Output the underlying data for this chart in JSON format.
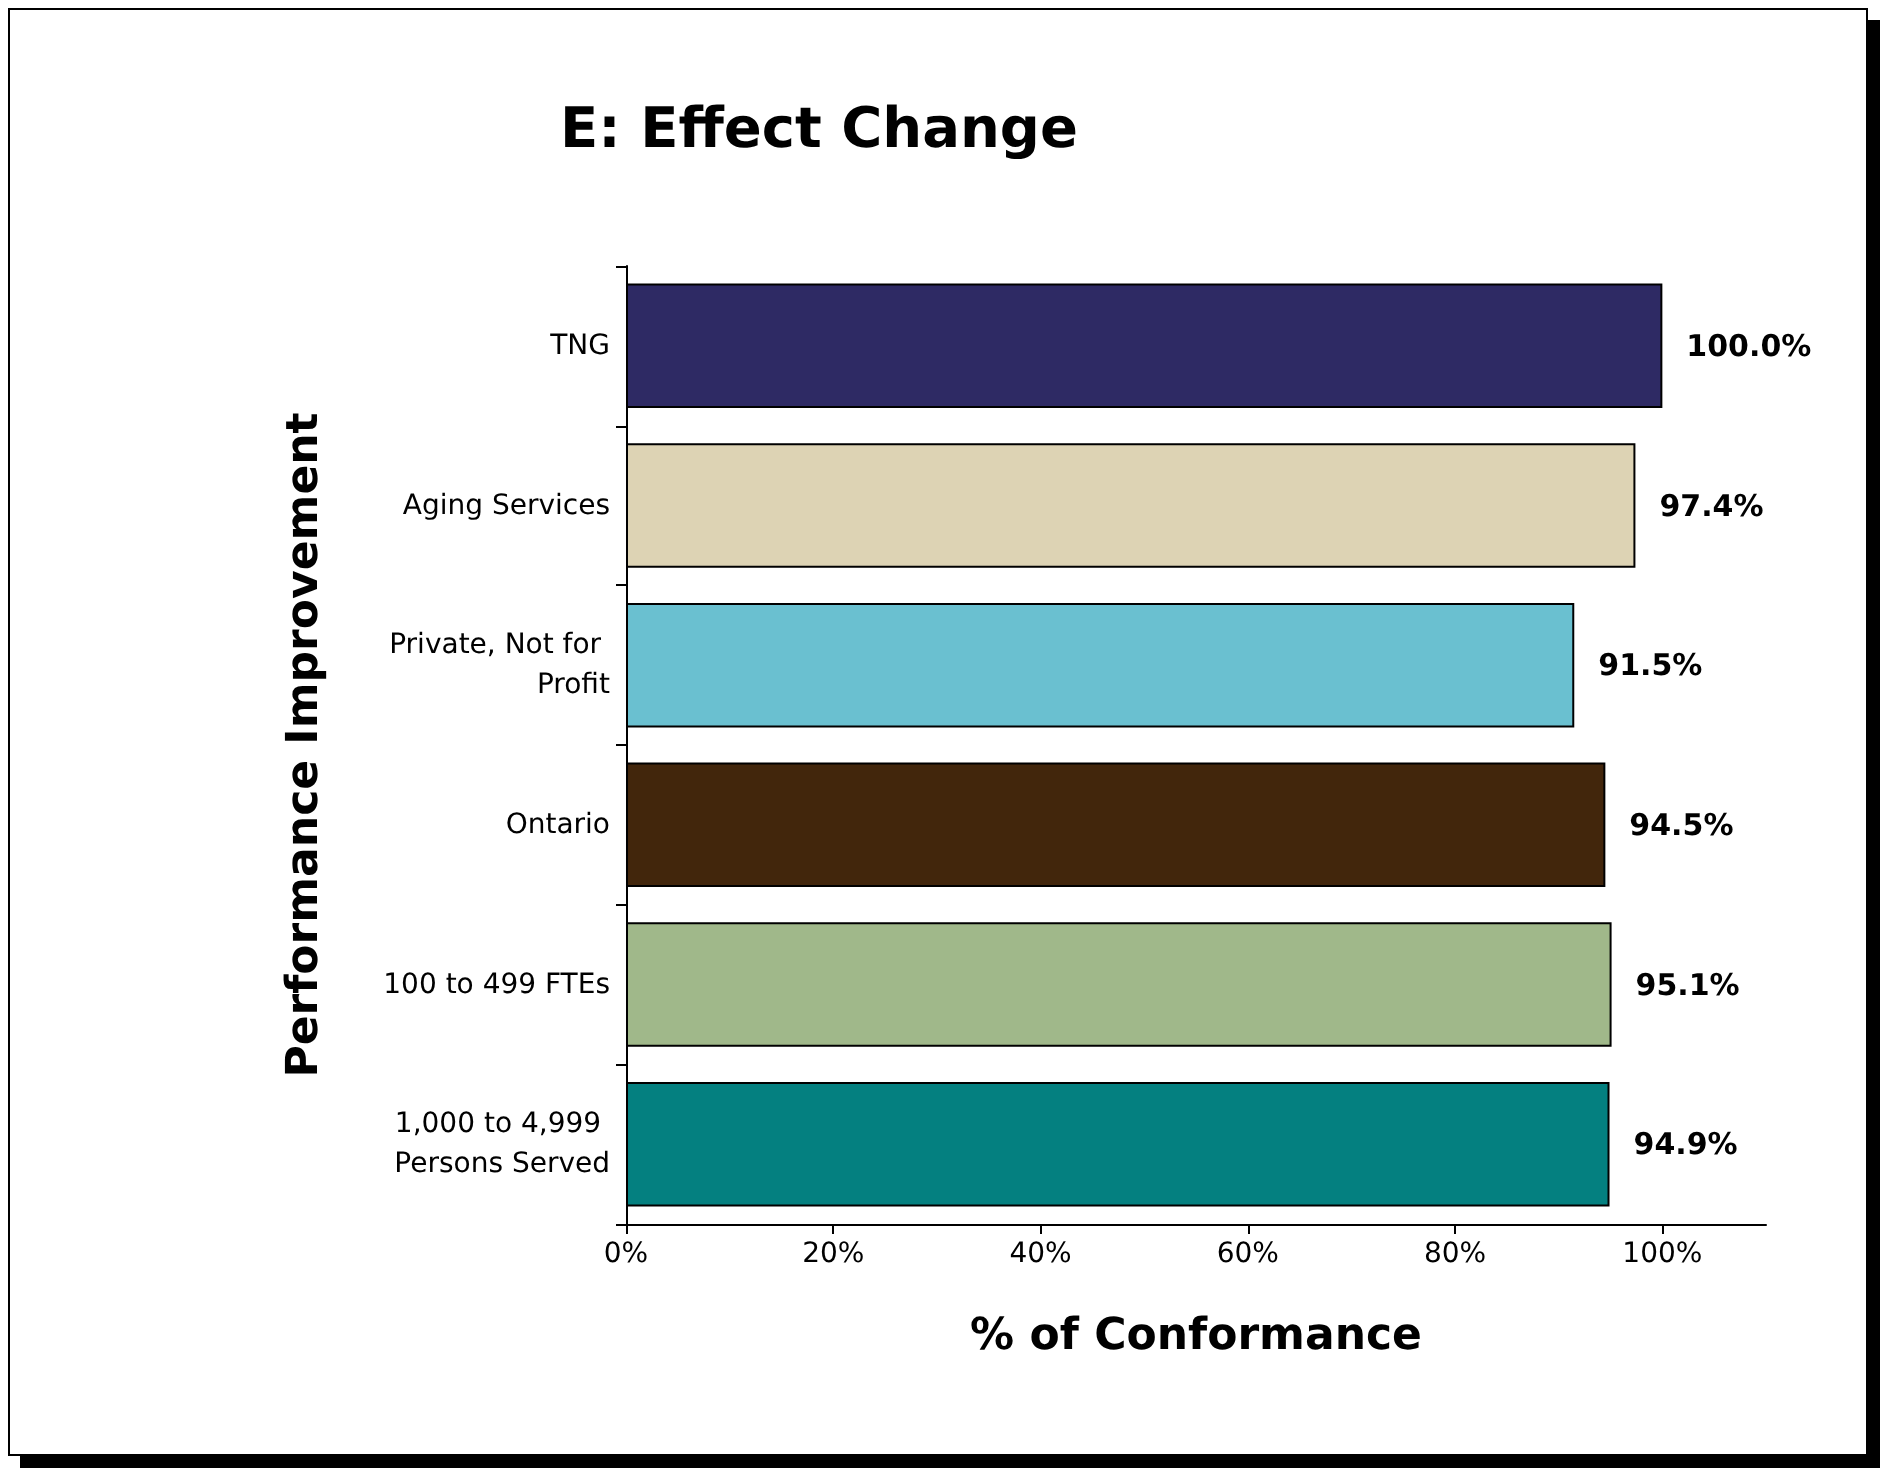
{
  "chart_data": {
    "type": "bar",
    "orientation": "horizontal",
    "title": "E: Effect Change",
    "xlabel": "% of Conformance",
    "ylabel": "Performance Improvement",
    "categories": [
      "TNG",
      "Aging Services",
      "Private, Not for Profit",
      "Ontario",
      "100 to 499 FTEs",
      "1,000 to 4,999 Persons Served"
    ],
    "values": [
      100.0,
      97.4,
      91.5,
      94.5,
      95.1,
      94.9
    ],
    "colors": [
      "#2e2a64",
      "#ddd3b4",
      "#6ac0d0",
      "#42260c",
      "#a0b88a",
      "#048080"
    ],
    "value_labels": [
      "100.0%",
      "97.4%",
      "91.5%",
      "94.5%",
      "95.1%",
      "94.9%"
    ],
    "xlim": [
      0,
      110
    ],
    "xticks": [
      {
        "value": 0,
        "label": "0%"
      },
      {
        "value": 20,
        "label": "20%"
      },
      {
        "value": 40,
        "label": "40%"
      },
      {
        "value": 60,
        "label": "60%"
      },
      {
        "value": 80,
        "label": "80%"
      },
      {
        "value": 100,
        "label": "100%"
      }
    ],
    "grid": false
  }
}
